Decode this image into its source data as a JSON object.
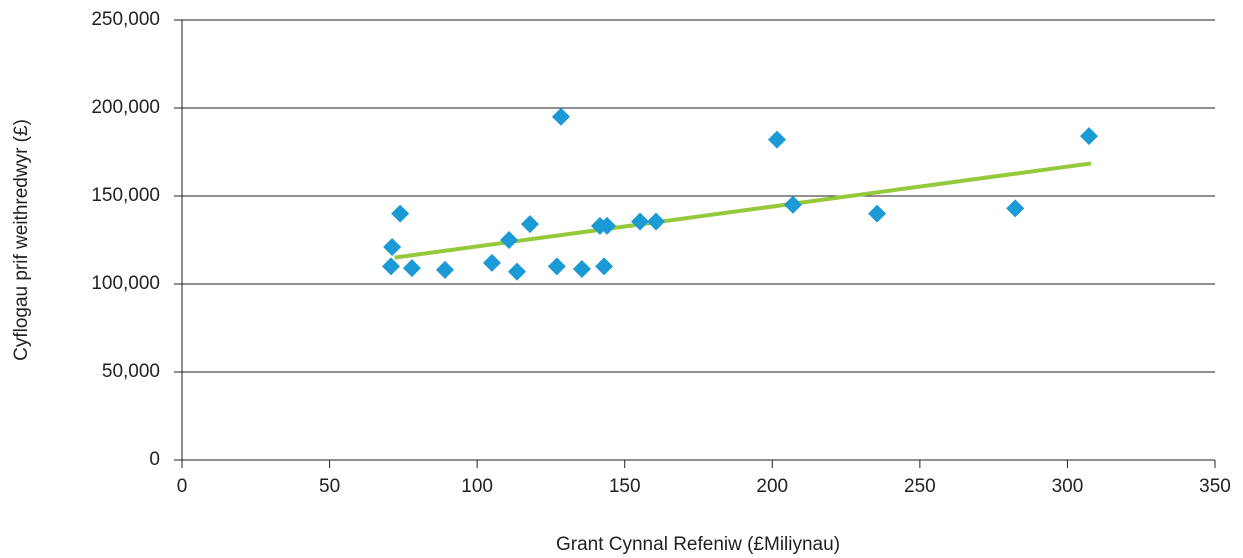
{
  "chart_data": {
    "type": "scatter",
    "x_label": "Grant Cynnal Refeniw (£Miliynau)",
    "y_label": "Cyflogau prif weithredwyr (£)",
    "series": [
      {
        "color": "#1b9ad6",
        "x": [
          71.2,
          70.8,
          73.9,
          77.9,
          89.1,
          105,
          110.8,
          113.5,
          117.9,
          127,
          128.4,
          135.5,
          141.6,
          143,
          144,
          155.2,
          160.6,
          201.6,
          207,
          235.5,
          282.3,
          307.3
        ],
        "values": [
          121000,
          110000,
          140000,
          109000,
          108000,
          112000,
          125000,
          107000,
          134000,
          110000,
          195000,
          108500,
          133000,
          110000,
          133000,
          135500,
          135500,
          182000,
          145000,
          140000,
          143000,
          184000
        ]
      }
    ],
    "trendline": {
      "color": "#96c83c",
      "x": [
        72,
        308
      ],
      "values": [
        115000,
        168500
      ]
    },
    "xlim": [
      0,
      350
    ],
    "xticks": [
      0,
      50,
      100,
      150,
      200,
      250,
      300,
      350
    ],
    "ylim": [
      0,
      250000
    ],
    "yticks": [
      0,
      {
        "value": 50000,
        "label": "50,000"
      },
      {
        "value": 100000,
        "label": "100,000"
      },
      {
        "value": 150000,
        "label": "150,000"
      },
      {
        "value": 200000,
        "label": "200,000"
      },
      {
        "value": 250000,
        "label": "250,000"
      }
    ],
    "grid": true
  }
}
